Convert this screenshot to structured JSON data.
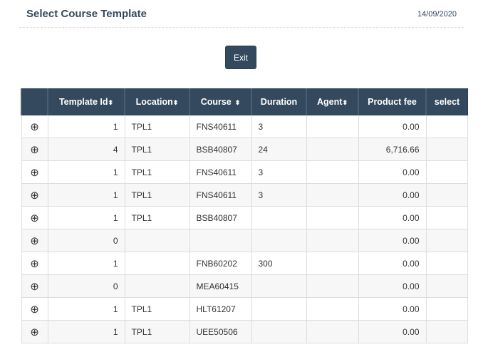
{
  "header": {
    "title": "Select Course Template",
    "date": "14/09/2020"
  },
  "exit_label": "Exit",
  "columns": [
    "",
    "Template Id",
    "Location",
    "Course",
    "Duration",
    "Agent",
    "Product fee",
    "select"
  ],
  "sortable": [
    false,
    true,
    true,
    true,
    false,
    true,
    false,
    false
  ],
  "rows": [
    [
      "1",
      "TPL1",
      "FNS40611",
      "3",
      "",
      "0.00"
    ],
    [
      "4",
      "TPL1",
      "BSB40807",
      "24",
      "",
      "6,716.66"
    ],
    [
      "1",
      "TPL1",
      "FNS40611",
      "3",
      "",
      "0.00"
    ],
    [
      "1",
      "TPL1",
      "FNS40611",
      "3",
      "",
      "0.00"
    ],
    [
      "1",
      "TPL1",
      "BSB40807",
      "",
      "",
      "0.00"
    ],
    [
      "0",
      "",
      "",
      "",
      "",
      "0.00"
    ],
    [
      "1",
      "",
      "FNB60202",
      "300",
      "",
      "0.00"
    ],
    [
      "0",
      "",
      "MEA60415",
      "",
      "",
      "0.00"
    ],
    [
      "1",
      "TPL1",
      "HLT61207",
      "",
      "",
      "0.00"
    ],
    [
      "1",
      "TPL1",
      "UEE50506",
      "",
      "",
      "0.00"
    ]
  ],
  "icons": {
    "expand": "circle-plus-icon",
    "sort": "sort-icon"
  }
}
